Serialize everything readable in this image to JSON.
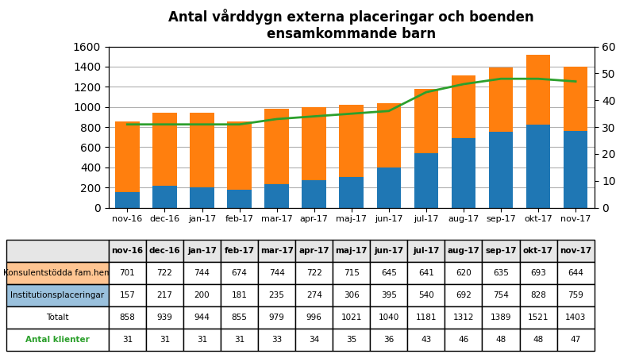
{
  "chart_data": {
    "type": "bar",
    "title": "Antal vårddygn externa placeringar och boenden\nensamkommande barn",
    "categories": [
      "nov-16",
      "dec-16",
      "jan-17",
      "feb-17",
      "mar-17",
      "apr-17",
      "maj-17",
      "jun-17",
      "jul-17",
      "aug-17",
      "sep-17",
      "okt-17",
      "nov-17"
    ],
    "stacked": true,
    "grid": true,
    "series": [
      {
        "name": "Institutionsplaceringar",
        "values": [
          157,
          217,
          200,
          181,
          235,
          274,
          306,
          395,
          540,
          692,
          754,
          828,
          759
        ]
      },
      {
        "name": "Konsulentstödda fam.hem",
        "values": [
          701,
          722,
          744,
          674,
          744,
          722,
          715,
          645,
          641,
          620,
          635,
          693,
          644
        ]
      },
      {
        "name": "Antal klienter",
        "type": "line",
        "axis": "y2",
        "values": [
          31,
          31,
          31,
          31,
          33,
          34,
          35,
          36,
          43,
          46,
          48,
          48,
          47
        ]
      }
    ],
    "totals": {
      "name": "Totalt",
      "values": [
        858,
        939,
        944,
        855,
        979,
        996,
        1021,
        1040,
        1181,
        1312,
        1389,
        1521,
        1403
      ]
    },
    "ylim": [
      0,
      1600
    ],
    "yticks": [
      0,
      200,
      400,
      600,
      800,
      1000,
      1200,
      1400,
      1600
    ],
    "y2lim": [
      0,
      60
    ],
    "y2ticks": [
      0,
      10,
      20,
      30,
      40,
      50,
      60
    ]
  }
}
